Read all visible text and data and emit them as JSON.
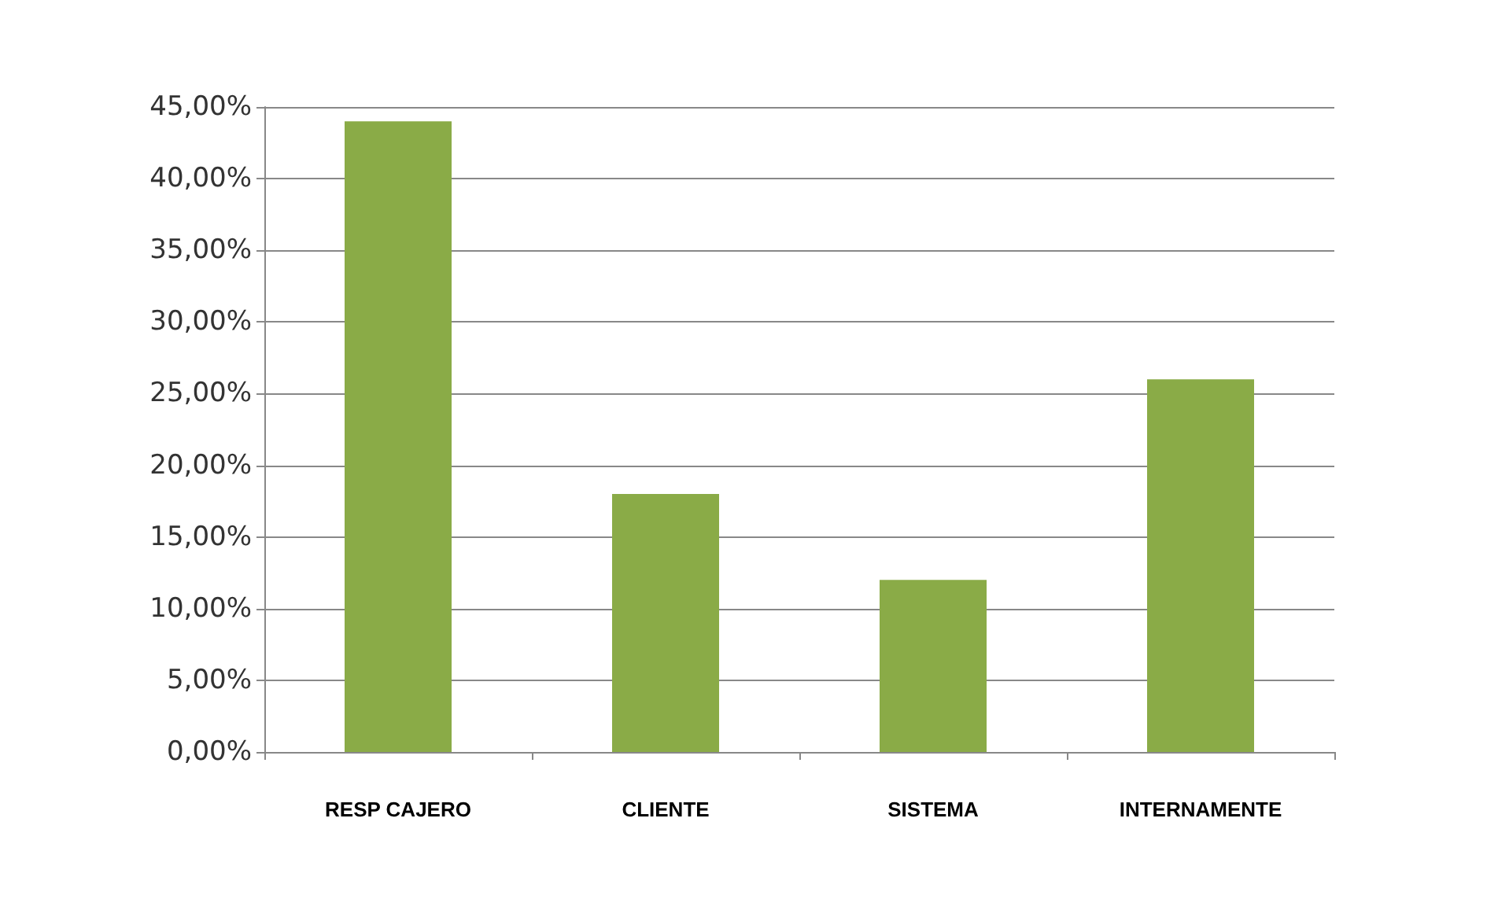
{
  "chart_data": {
    "type": "bar",
    "categories": [
      "RESP CAJERO",
      "CLIENTE",
      "SISTEMA",
      "INTERNAMENTE"
    ],
    "values": [
      44,
      18,
      12,
      26
    ],
    "color": "#8aab47",
    "ylim": [
      0,
      45
    ],
    "yticks": [
      {
        "value": 0,
        "label": "0,00%"
      },
      {
        "value": 5,
        "label": "5,00%"
      },
      {
        "value": 10,
        "label": "10,00%"
      },
      {
        "value": 15,
        "label": "15,00%"
      },
      {
        "value": 20,
        "label": "20,00%"
      },
      {
        "value": 25,
        "label": "25,00%"
      },
      {
        "value": 30,
        "label": "30,00%"
      },
      {
        "value": 35,
        "label": "35,00%"
      },
      {
        "value": 40,
        "label": "40,00%"
      },
      {
        "value": 45,
        "label": "45,00%"
      }
    ],
    "grid": "y"
  }
}
